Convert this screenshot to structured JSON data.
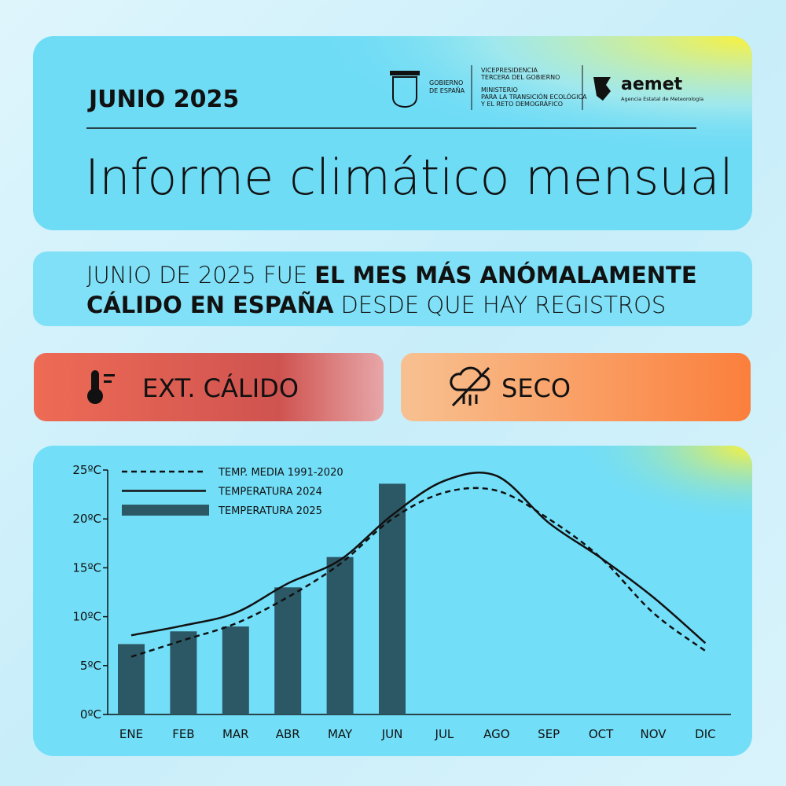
{
  "header": {
    "date": "JUNIO 2025",
    "title": "Informe climático mensual",
    "gov": [
      "GOBIERNO",
      "DE ESPAÑA"
    ],
    "vice": [
      "VICEPRESIDENCIA",
      "TERCERA DEL GOBIERNO"
    ],
    "ministry": [
      "MINISTERIO",
      "PARA LA TRANSICIÓN ECOLÓGICA",
      "Y EL RETO DEMOGRÁFICO"
    ],
    "agency": "aemet",
    "agency_full": "Agencia Estatal de Meteorología"
  },
  "headline": [
    [
      {
        "text": "JUNIO DE 2025 FUE",
        "bold": false
      },
      {
        "text": "EL MES MÁS ANÓMALAMENTE",
        "bold": true
      }
    ],
    [
      {
        "text": "CÁLIDO EN ESPAÑA",
        "bold": true
      },
      {
        "text": "DESDE QUE HAY REGISTROS",
        "bold": false
      }
    ]
  ],
  "badges": [
    {
      "label": "EXT. CÁLIDO",
      "color": "#d9615a"
    },
    {
      "label": "SECO",
      "color": "#f7995a"
    }
  ],
  "chart_data": {
    "type": "bar-line",
    "categories": [
      "ENE",
      "FEB",
      "MAR",
      "ABR",
      "MAY",
      "JUN",
      "JUL",
      "AGO",
      "SEP",
      "OCT",
      "NOV",
      "DIC"
    ],
    "series": [
      {
        "name": "TEMP. MEDIA 1991-2020",
        "kind": "line",
        "dashed": true,
        "color": "#111111",
        "values": [
          5.9,
          7.6,
          9.3,
          12.0,
          15.4,
          20.0,
          22.7,
          22.9,
          20.0,
          16.0,
          10.4,
          6.5
        ]
      },
      {
        "name": "TEMPERATURA 2024",
        "kind": "line",
        "dashed": false,
        "color": "#111111",
        "values": [
          8.1,
          9.1,
          10.4,
          13.4,
          15.8,
          20.4,
          23.9,
          24.4,
          19.6,
          16.0,
          12.0,
          7.3
        ]
      },
      {
        "name": "TEMPERATURA 2025",
        "kind": "bar",
        "color": "#2c5866",
        "values": [
          7.2,
          8.5,
          9.0,
          13.0,
          16.1,
          23.6,
          null,
          null,
          null,
          null,
          null,
          null
        ]
      }
    ],
    "ylim": [
      0,
      25
    ],
    "yticks": [
      {
        "value": 0,
        "label": "0ºC"
      },
      {
        "value": 5,
        "label": "5ºC"
      },
      {
        "value": 10,
        "label": "10ºC"
      },
      {
        "value": 15,
        "label": "15ºC"
      },
      {
        "value": 20,
        "label": "20ºC"
      },
      {
        "value": 25,
        "label": "25ºC"
      }
    ],
    "legend": "top-left"
  }
}
